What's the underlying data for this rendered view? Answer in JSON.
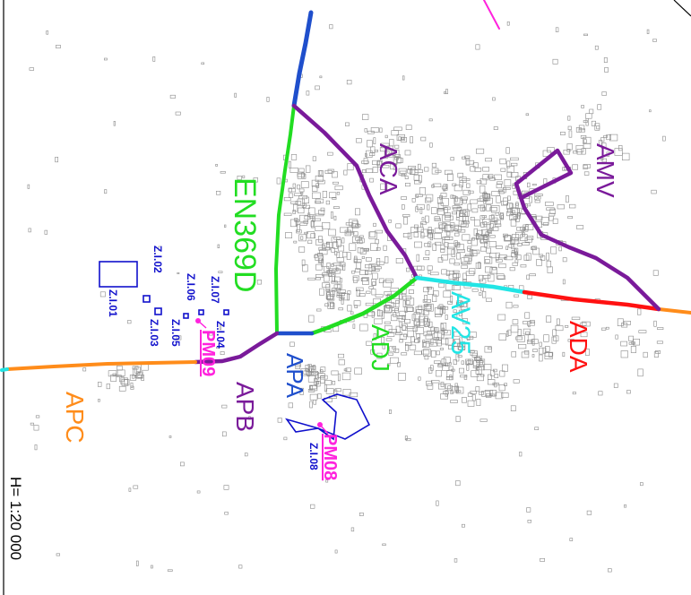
{
  "map": {
    "scale_label": "H= 1:20 000",
    "road_labels": [
      {
        "key": "en369d",
        "text": "EN369D",
        "color": "#22dd22"
      },
      {
        "key": "aca",
        "text": "ACA",
        "color": "#7a1a9a"
      },
      {
        "key": "amv",
        "text": "AMV",
        "color": "#7a1a9a"
      },
      {
        "key": "av25",
        "text": "AV25",
        "color": "#22e5e5"
      },
      {
        "key": "ada",
        "text": "ADA",
        "color": "#ff1111"
      },
      {
        "key": "adj",
        "text": "ADJ",
        "color": "#22dd22"
      },
      {
        "key": "apa",
        "text": "APA",
        "color": "#1f4fcc"
      },
      {
        "key": "apb",
        "text": "APB",
        "color": "#7a1a9a"
      },
      {
        "key": "apc",
        "text": "APC",
        "color": "#ff8c1a"
      }
    ],
    "zones": [
      {
        "key": "zi01",
        "text": "Z.I.01"
      },
      {
        "key": "zi02",
        "text": "Z.I.02"
      },
      {
        "key": "zi03",
        "text": "Z.I.03"
      },
      {
        "key": "zi04",
        "text": "Z.I.04"
      },
      {
        "key": "zi05",
        "text": "Z.I.05"
      },
      {
        "key": "zi06",
        "text": "Z.I.06"
      },
      {
        "key": "zi07",
        "text": "Z.I.07"
      },
      {
        "key": "zi08",
        "text": "Z.I.08"
      }
    ],
    "markers": [
      {
        "key": "pm09",
        "text": "PM09"
      },
      {
        "key": "pm08",
        "text": "PM08"
      }
    ],
    "colors": {
      "green": "#22dd22",
      "purple": "#7a1a9a",
      "cyan": "#22e5e5",
      "red": "#ff1111",
      "blue": "#1f4fcc",
      "orange": "#ff8c1a",
      "magenta": "#ff22dd",
      "zone": "#1010cc",
      "building": "#8a8a8a"
    }
  }
}
